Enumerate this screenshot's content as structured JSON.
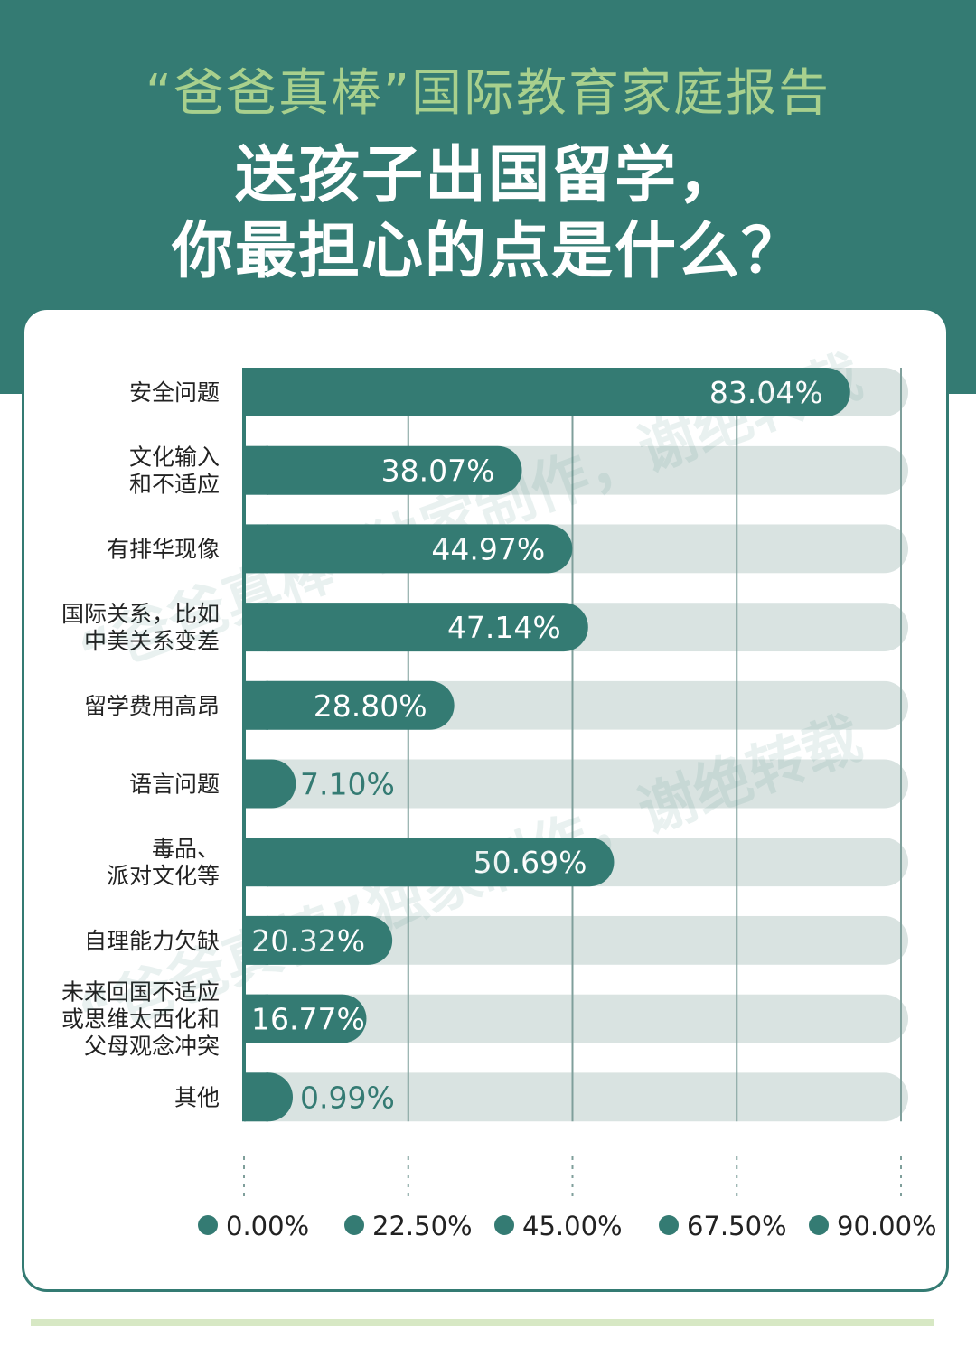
{
  "header": {
    "supertitle": "“爸爸真棒”国际教育家庭报告",
    "title_line1": "送孩子出国留学，",
    "title_line2": "你最担心的点是什么？"
  },
  "watermark": {
    "line_a": "“爸爸真棒”独家制作，谢绝转载",
    "line_b": "“爸爸真棒”独家制作，谢绝转载"
  },
  "colors": {
    "accent": "#347b73",
    "track": "#d9e3e1",
    "gridline": "#7f9f9b",
    "label_text": "#222222",
    "light_green": "#a8d08d"
  },
  "chart_data": {
    "type": "bar",
    "orientation": "horizontal",
    "categories": [
      [
        "安全问题"
      ],
      [
        "文化输入",
        "和不适应"
      ],
      [
        "有排华现像"
      ],
      [
        "国际关系，比如",
        "中美关系变差"
      ],
      [
        "留学费用高昂"
      ],
      [
        "语言问题"
      ],
      [
        "毒品、",
        "派对文化等"
      ],
      [
        "自理能力欠缺"
      ],
      [
        "未来回国不适应",
        "或思维太西化和",
        "父母观念冲突"
      ],
      [
        "其他"
      ]
    ],
    "values": [
      83.04,
      38.07,
      44.97,
      47.14,
      28.8,
      7.1,
      50.69,
      20.32,
      16.77,
      0.99
    ],
    "value_labels": [
      "83.04%",
      "38.07%",
      "44.97%",
      "47.14%",
      "28.80%",
      "7.10%",
      "50.69%",
      "20.32%",
      "16.77%",
      "0.99%"
    ],
    "xlim": [
      0,
      90
    ],
    "ticks": [
      0,
      22.5,
      45,
      67.5,
      90
    ],
    "tick_labels": [
      "0.00%",
      "22.50%",
      "45.00%",
      "67.50%",
      "90.00%"
    ],
    "grid": true,
    "unit": "%"
  }
}
